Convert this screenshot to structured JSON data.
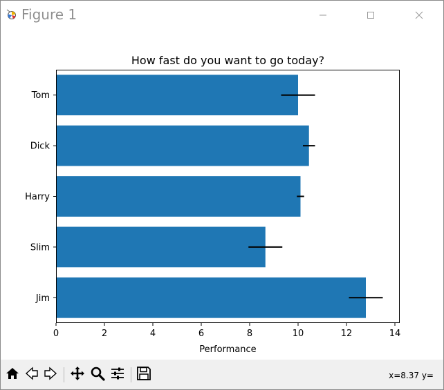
{
  "window": {
    "title": "Figure 1",
    "app_icon": "matplotlib-figure-icon",
    "controls": [
      "minimize-icon",
      "maximize-icon",
      "close-icon"
    ]
  },
  "toolbar": {
    "buttons": [
      "home-icon",
      "back-arrow-icon",
      "forward-arrow-icon",
      "pan-move-icon",
      "zoom-magnifier-icon",
      "configure-subplots-icon",
      "save-floppy-icon"
    ],
    "coordinates": "x=8.37 y="
  },
  "chart_data": {
    "type": "bar",
    "orientation": "horizontal",
    "title": "How fast do you want to go today?",
    "xlabel": "Performance",
    "ylabel": "",
    "categories": [
      "Tom",
      "Dick",
      "Harry",
      "Slim",
      "Jim"
    ],
    "values": [
      10.0,
      10.45,
      10.1,
      8.65,
      12.8
    ],
    "errors": [
      0.7,
      0.25,
      0.15,
      0.7,
      0.7
    ],
    "xlim": [
      0,
      14.2
    ],
    "xticks": [
      0,
      2,
      4,
      6,
      8,
      10,
      12,
      14
    ],
    "bar_color": "#1f77b4",
    "error_color": "#000000",
    "grid": false,
    "legend": "none"
  }
}
